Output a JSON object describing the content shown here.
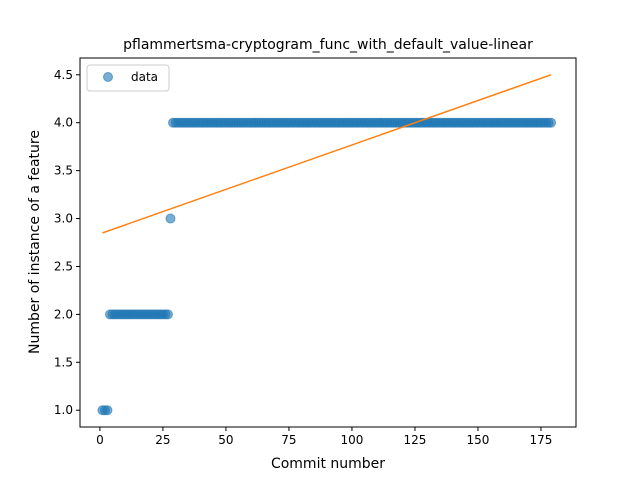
{
  "chart_data": {
    "type": "scatter",
    "title": "pflammertsma-cryptogram_func_with_default_value-linear",
    "xlabel": "Commit number",
    "ylabel": "Number of instance of a feature",
    "xlim": [
      -7.9,
      188.9
    ],
    "ylim": [
      0.825,
      4.675
    ],
    "xticks": [
      0,
      25,
      50,
      75,
      100,
      125,
      150,
      175
    ],
    "yticks": [
      1.0,
      1.5,
      2.0,
      2.5,
      3.0,
      3.5,
      4.0,
      4.5
    ],
    "xtick_labels": [
      "0",
      "25",
      "50",
      "75",
      "100",
      "125",
      "150",
      "175"
    ],
    "ytick_labels": [
      "1.0",
      "1.5",
      "2.0",
      "2.5",
      "3.0",
      "3.5",
      "4.0",
      "4.5"
    ],
    "legend": {
      "position": "upper-left",
      "entries": [
        "data"
      ]
    },
    "series": [
      {
        "name": "data",
        "kind": "scatter",
        "color": "#1f77b4",
        "segments": [
          {
            "x_start": 1,
            "x_end": 3,
            "y": 1.0
          },
          {
            "x_start": 4,
            "x_end": 27,
            "y": 2.0
          },
          {
            "x_start": 28,
            "x_end": 28,
            "y": 3.0
          },
          {
            "x_start": 29,
            "x_end": 179,
            "y": 4.0
          }
        ]
      },
      {
        "kind": "line",
        "color": "#ff7f0e",
        "x": [
          1,
          179
        ],
        "y": [
          2.85,
          4.5
        ]
      }
    ]
  }
}
